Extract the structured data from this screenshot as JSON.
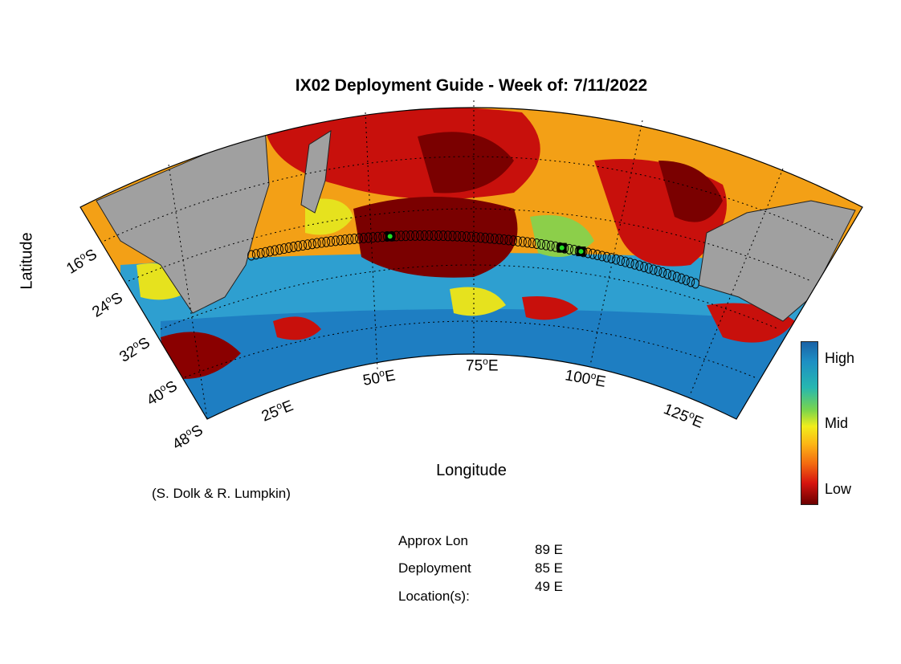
{
  "title": "IX02 Deployment Guide - Week of: 7/11/2022",
  "axes": {
    "ylabel": "Latitude",
    "xlabel": "Longitude"
  },
  "lat_ticks": [
    {
      "deg": "16",
      "hemi": "S"
    },
    {
      "deg": "24",
      "hemi": "S"
    },
    {
      "deg": "32",
      "hemi": "S"
    },
    {
      "deg": "40",
      "hemi": "S"
    },
    {
      "deg": "48",
      "hemi": "S"
    }
  ],
  "lon_ticks": [
    {
      "deg": "25",
      "hemi": "E"
    },
    {
      "deg": "50",
      "hemi": "E"
    },
    {
      "deg": "75",
      "hemi": "E"
    },
    {
      "deg": "100",
      "hemi": "E"
    },
    {
      "deg": "125",
      "hemi": "E"
    }
  ],
  "colorbar": {
    "high": "High",
    "mid": "Mid",
    "low": "Low"
  },
  "credit": "(S. Dolk & R. Lumpkin)",
  "info": {
    "label_1": "Approx Lon",
    "label_2": "Deployment",
    "label_3": "Location(s):",
    "values": [
      "89 E",
      "85 E",
      "49 E"
    ]
  },
  "colors": {
    "land": "#a0a0a0",
    "high": "#1a62a6",
    "mid": "#f1ed1b",
    "low": "#6b0000",
    "deployment_marker": "#22dd22",
    "track": "#000000"
  },
  "map": {
    "projection": "conic",
    "lon_range": [
      25,
      125
    ],
    "lat_range": [
      -48,
      -10
    ],
    "deployment_lons": [
      89,
      85,
      49
    ]
  }
}
